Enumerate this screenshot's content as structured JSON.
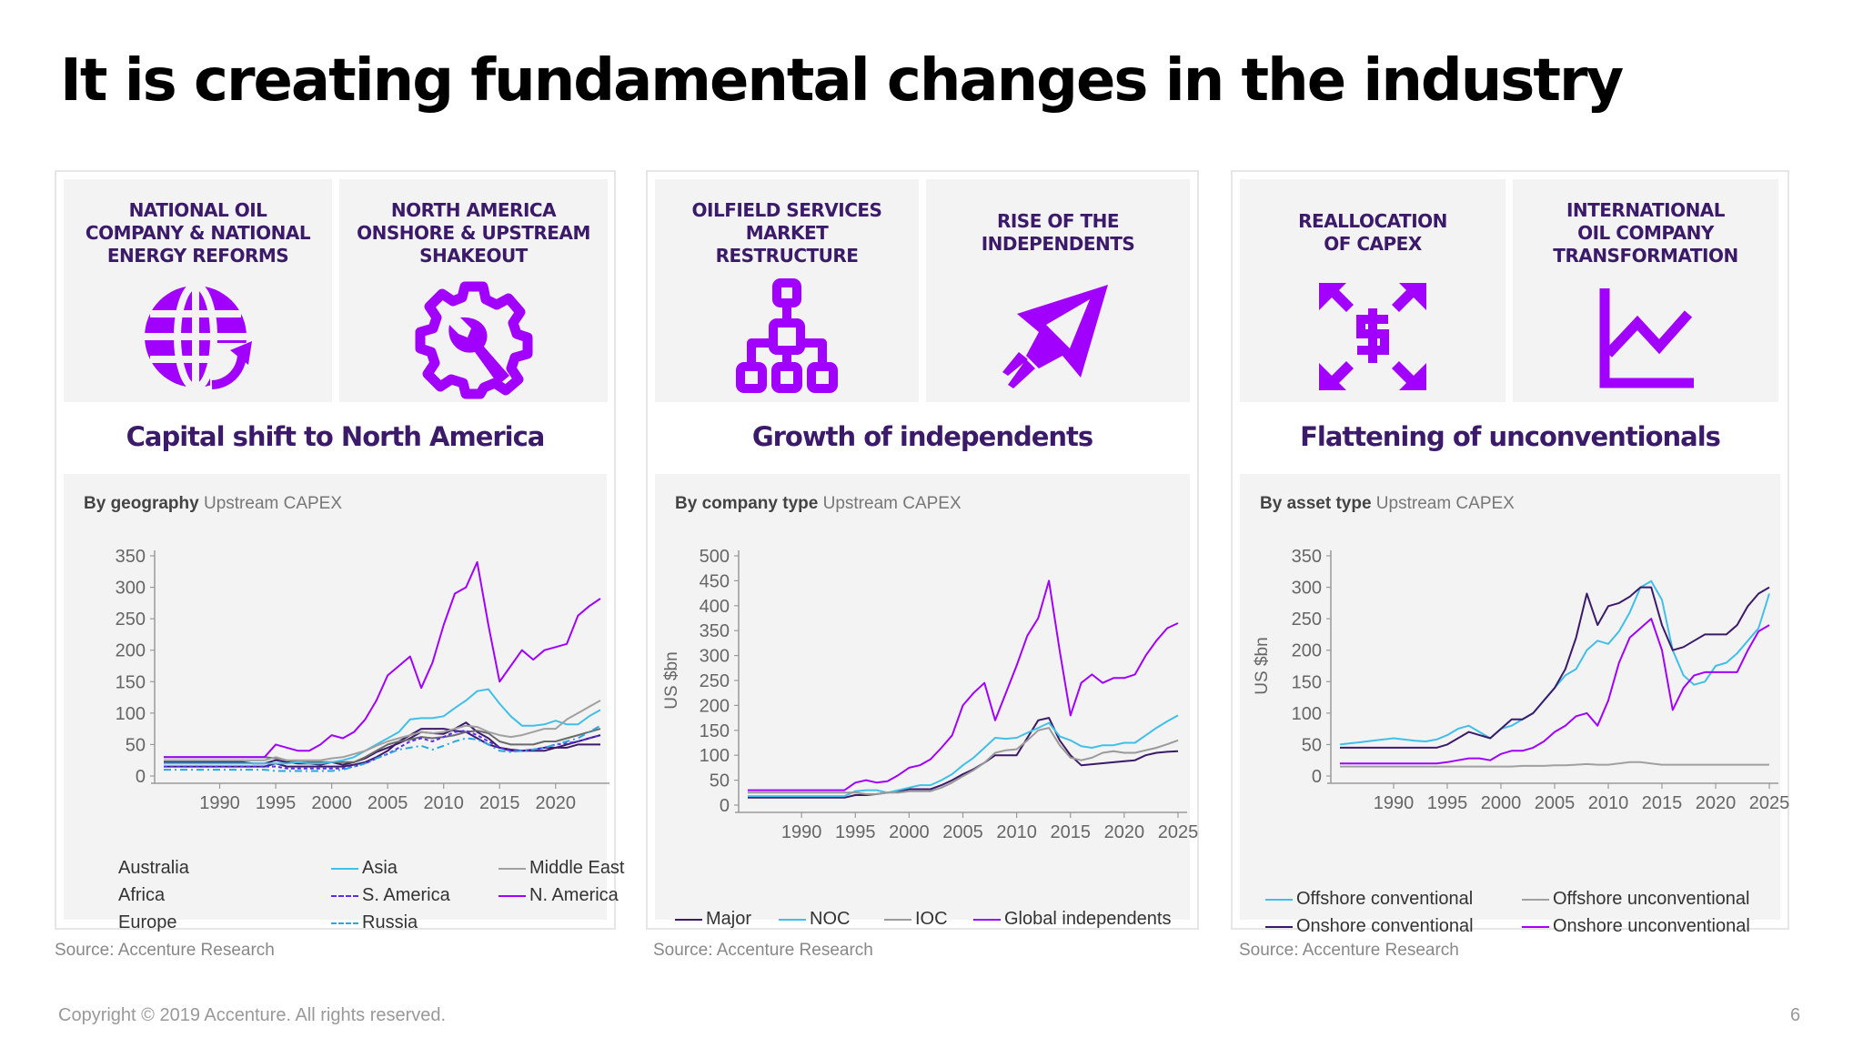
{
  "title": "It is creating fundamental changes in the industry",
  "colors": {
    "purple": "#a100ff",
    "navy": "#3c1a6a"
  },
  "panels": [
    {
      "tiles": [
        {
          "title": "NATIONAL OIL\nCOMPANY & NATIONAL\nENERGY REFORMS",
          "icon": "globe-icon"
        },
        {
          "title": "NORTH AMERICA\nONSHORE & UPSTREAM\nSHAKEOUT",
          "icon": "gear-wrench-icon"
        }
      ],
      "subhead": "Capital shift to North America",
      "chart_label_bold": "By geography",
      "chart_label": "Upstream CAPEX",
      "source": "Source: Accenture Research"
    },
    {
      "tiles": [
        {
          "title": "OILFIELD SERVICES\nMARKET\nRESTRUCTURE",
          "icon": "hierarchy-icon"
        },
        {
          "title": "RISE OF THE\nINDEPENDENTS",
          "icon": "rocket-icon"
        }
      ],
      "subhead": "Growth of independents",
      "chart_label_bold": "By company type",
      "chart_label": "Upstream CAPEX",
      "source": "Source: Accenture Research"
    },
    {
      "tiles": [
        {
          "title": "REALLOCATION\nOF CAPEX",
          "icon": "dollar-arrows-icon"
        },
        {
          "title": "INTERNATIONAL\nOIL COMPANY\nTRANSFORMATION",
          "icon": "line-chart-icon"
        }
      ],
      "subhead": "Flattening of unconventionals",
      "chart_label_bold": "By asset type",
      "chart_label": "Upstream CAPEX",
      "source": "Source: Accenture Research"
    }
  ],
  "chart_data": [
    {
      "type": "line",
      "title": "By geography Upstream CAPEX",
      "xlabel": "",
      "ylabel": "",
      "ylim": [
        0,
        350
      ],
      "yticks": [
        0,
        50,
        100,
        150,
        200,
        250,
        300,
        350
      ],
      "xticks": [
        1990,
        1995,
        2000,
        2005,
        2010,
        2015,
        2020
      ],
      "x": [
        1985,
        1986,
        1987,
        1988,
        1989,
        1990,
        1991,
        1992,
        1993,
        1994,
        1995,
        1996,
        1997,
        1998,
        1999,
        2000,
        2001,
        2002,
        2003,
        2004,
        2005,
        2006,
        2007,
        2008,
        2009,
        2010,
        2011,
        2012,
        2013,
        2014,
        2015,
        2016,
        2017,
        2018,
        2019,
        2020,
        2021,
        2022,
        2023,
        2024
      ],
      "legend": "bottom",
      "series": [
        {
          "name": "Australia",
          "color": "#3c1a6a",
          "dash": "",
          "values": [
            22,
            22,
            22,
            22,
            22,
            22,
            22,
            22,
            20,
            20,
            25,
            22,
            20,
            20,
            18,
            22,
            18,
            22,
            28,
            38,
            45,
            52,
            60,
            70,
            68,
            67,
            75,
            85,
            70,
            60,
            45,
            42,
            40,
            40,
            40,
            45,
            45,
            50,
            50,
            50
          ]
        },
        {
          "name": "Africa",
          "color": "#3c1a6a",
          "dash": "",
          "values": [
            15,
            15,
            15,
            15,
            15,
            15,
            15,
            15,
            15,
            15,
            20,
            15,
            15,
            15,
            15,
            15,
            15,
            18,
            22,
            30,
            40,
            55,
            65,
            75,
            75,
            75,
            72,
            70,
            60,
            50,
            45,
            40,
            40,
            42,
            45,
            45,
            50,
            55,
            60,
            65
          ]
        },
        {
          "name": "Europe",
          "color": "#6a6a6a",
          "dash": "",
          "values": [
            30,
            30,
            30,
            30,
            30,
            30,
            30,
            30,
            30,
            30,
            28,
            25,
            22,
            22,
            22,
            22,
            22,
            22,
            30,
            40,
            50,
            55,
            58,
            62,
            60,
            62,
            65,
            70,
            72,
            68,
            55,
            50,
            50,
            50,
            55,
            55,
            60,
            65,
            70,
            75
          ]
        },
        {
          "name": "Asia",
          "color": "#40c0e8",
          "dash": "",
          "values": [
            20,
            20,
            20,
            20,
            20,
            20,
            20,
            20,
            20,
            20,
            20,
            20,
            22,
            20,
            20,
            22,
            25,
            30,
            40,
            50,
            60,
            70,
            90,
            92,
            92,
            95,
            108,
            120,
            135,
            138,
            115,
            95,
            80,
            80,
            82,
            88,
            82,
            82,
            95,
            105
          ]
        },
        {
          "name": "S. America",
          "color": "#5b2de6",
          "dash": "4 3",
          "values": [
            15,
            15,
            15,
            15,
            15,
            15,
            15,
            15,
            15,
            15,
            15,
            12,
            12,
            12,
            12,
            12,
            12,
            15,
            20,
            28,
            35,
            45,
            55,
            60,
            55,
            62,
            70,
            72,
            65,
            55,
            45,
            40,
            40,
            42,
            45,
            50,
            52,
            55,
            60,
            65
          ]
        },
        {
          "name": "Russia",
          "color": "#2aa8e0",
          "dash": "8 4 2 4",
          "values": [
            10,
            10,
            10,
            10,
            10,
            10,
            10,
            10,
            10,
            10,
            8,
            8,
            8,
            8,
            8,
            8,
            10,
            15,
            20,
            28,
            35,
            42,
            45,
            48,
            42,
            48,
            55,
            60,
            58,
            50,
            40,
            38,
            40,
            42,
            45,
            50,
            55,
            60,
            70,
            80
          ]
        },
        {
          "name": "Middle East",
          "color": "#a0a0a0",
          "dash": "",
          "values": [
            25,
            25,
            25,
            25,
            25,
            25,
            25,
            25,
            25,
            25,
            30,
            25,
            25,
            25,
            25,
            28,
            30,
            35,
            40,
            48,
            55,
            60,
            65,
            70,
            68,
            70,
            75,
            80,
            78,
            70,
            65,
            62,
            65,
            70,
            75,
            75,
            90,
            100,
            110,
            120
          ]
        },
        {
          "name": "N. America",
          "color": "#a100ff",
          "dash": "",
          "values": [
            30,
            30,
            30,
            30,
            30,
            30,
            30,
            30,
            30,
            30,
            50,
            45,
            40,
            40,
            50,
            65,
            60,
            70,
            90,
            120,
            160,
            175,
            190,
            140,
            180,
            240,
            290,
            300,
            340,
            240,
            150,
            175,
            200,
            185,
            200,
            205,
            210,
            255,
            270,
            282
          ]
        }
      ]
    },
    {
      "type": "line",
      "title": "By company type Upstream CAPEX",
      "xlabel": "",
      "ylabel": "US $bn",
      "ylim": [
        0,
        500
      ],
      "yticks": [
        0,
        50,
        100,
        150,
        200,
        250,
        300,
        350,
        400,
        450,
        500
      ],
      "xticks": [
        1990,
        1995,
        2000,
        2005,
        2010,
        2015,
        2020,
        2025
      ],
      "x": [
        1985,
        1986,
        1987,
        1988,
        1989,
        1990,
        1991,
        1992,
        1993,
        1994,
        1995,
        1996,
        1997,
        1998,
        1999,
        2000,
        2001,
        2002,
        2003,
        2004,
        2005,
        2006,
        2007,
        2008,
        2009,
        2010,
        2011,
        2012,
        2013,
        2014,
        2015,
        2016,
        2017,
        2018,
        2019,
        2020,
        2021,
        2022,
        2023,
        2024,
        2025
      ],
      "legend": "bottom",
      "series": [
        {
          "name": "Major",
          "color": "#3c1a6a",
          "dash": "",
          "values": [
            15,
            15,
            15,
            15,
            15,
            15,
            15,
            15,
            15,
            15,
            20,
            20,
            22,
            25,
            28,
            32,
            32,
            32,
            40,
            50,
            62,
            72,
            85,
            100,
            100,
            100,
            135,
            170,
            175,
            130,
            100,
            80,
            82,
            84,
            86,
            88,
            90,
            100,
            105,
            107,
            108
          ]
        },
        {
          "name": "NOC",
          "color": "#40c0e8",
          "dash": "",
          "values": [
            18,
            18,
            18,
            18,
            18,
            18,
            18,
            18,
            18,
            18,
            28,
            30,
            30,
            25,
            30,
            35,
            40,
            40,
            50,
            62,
            80,
            95,
            115,
            135,
            133,
            135,
            145,
            155,
            165,
            138,
            130,
            118,
            115,
            120,
            120,
            125,
            125,
            140,
            155,
            168,
            180
          ]
        },
        {
          "name": "IOC",
          "color": "#9a9a9a",
          "dash": "",
          "values": [
            25,
            25,
            25,
            25,
            25,
            25,
            25,
            25,
            25,
            25,
            25,
            22,
            22,
            25,
            25,
            28,
            28,
            28,
            35,
            45,
            58,
            70,
            85,
            105,
            110,
            112,
            130,
            150,
            155,
            120,
            95,
            90,
            95,
            105,
            108,
            105,
            105,
            110,
            115,
            122,
            130
          ]
        },
        {
          "name": "Global independents",
          "color": "#a100ff",
          "dash": "",
          "values": [
            30,
            30,
            30,
            30,
            30,
            30,
            30,
            30,
            30,
            30,
            45,
            50,
            45,
            48,
            60,
            75,
            80,
            92,
            115,
            140,
            200,
            225,
            245,
            170,
            225,
            280,
            340,
            375,
            450,
            310,
            180,
            245,
            262,
            245,
            255,
            255,
            262,
            300,
            330,
            355,
            365
          ]
        }
      ]
    },
    {
      "type": "line",
      "title": "By asset type Upstream CAPEX",
      "xlabel": "",
      "ylabel": "US $bn",
      "ylim": [
        0,
        350
      ],
      "yticks": [
        0,
        50,
        100,
        150,
        200,
        250,
        300,
        350
      ],
      "xticks": [
        1990,
        1995,
        2000,
        2005,
        2010,
        2015,
        2020,
        2025
      ],
      "x": [
        1985,
        1986,
        1987,
        1988,
        1989,
        1990,
        1991,
        1992,
        1993,
        1994,
        1995,
        1996,
        1997,
        1998,
        1999,
        2000,
        2001,
        2002,
        2003,
        2004,
        2005,
        2006,
        2007,
        2008,
        2009,
        2010,
        2011,
        2012,
        2013,
        2014,
        2015,
        2016,
        2017,
        2018,
        2019,
        2020,
        2021,
        2022,
        2023,
        2024,
        2025
      ],
      "legend": "bottom",
      "series": [
        {
          "name": "Offshore conventional",
          "color": "#40c0e8",
          "dash": "",
          "values": [
            50,
            52,
            54,
            56,
            58,
            60,
            58,
            56,
            55,
            58,
            65,
            75,
            80,
            70,
            60,
            75,
            80,
            90,
            100,
            120,
            140,
            160,
            170,
            200,
            215,
            210,
            230,
            260,
            300,
            310,
            280,
            200,
            160,
            145,
            150,
            175,
            180,
            195,
            215,
            235,
            290
          ]
        },
        {
          "name": "Onshore conventional",
          "color": "#3c1a6a",
          "dash": "",
          "values": [
            45,
            45,
            45,
            45,
            45,
            45,
            45,
            45,
            45,
            45,
            50,
            60,
            70,
            65,
            60,
            75,
            90,
            90,
            100,
            120,
            140,
            170,
            220,
            290,
            240,
            270,
            275,
            285,
            300,
            300,
            240,
            200,
            205,
            215,
            225,
            225,
            225,
            240,
            270,
            290,
            300
          ]
        },
        {
          "name": "Offshore unconventional",
          "color": "#a0a0a0",
          "dash": "",
          "values": [
            15,
            15,
            15,
            15,
            15,
            15,
            15,
            15,
            15,
            15,
            15,
            15,
            15,
            15,
            15,
            15,
            15,
            16,
            16,
            16,
            17,
            17,
            18,
            19,
            18,
            18,
            20,
            22,
            22,
            20,
            18,
            18,
            18,
            18,
            18,
            18,
            18,
            18,
            18,
            18,
            18
          ]
        },
        {
          "name": "Onshore unconventional",
          "color": "#a100ff",
          "dash": "",
          "values": [
            20,
            20,
            20,
            20,
            20,
            20,
            20,
            20,
            20,
            20,
            22,
            25,
            28,
            28,
            25,
            35,
            40,
            40,
            45,
            55,
            70,
            80,
            95,
            100,
            80,
            120,
            180,
            220,
            235,
            250,
            200,
            105,
            140,
            160,
            165,
            165,
            165,
            165,
            200,
            230,
            240
          ]
        }
      ]
    }
  ],
  "footer": {
    "copyright": "Copyright © 2019 Accenture. All rights reserved.",
    "page": "6"
  }
}
